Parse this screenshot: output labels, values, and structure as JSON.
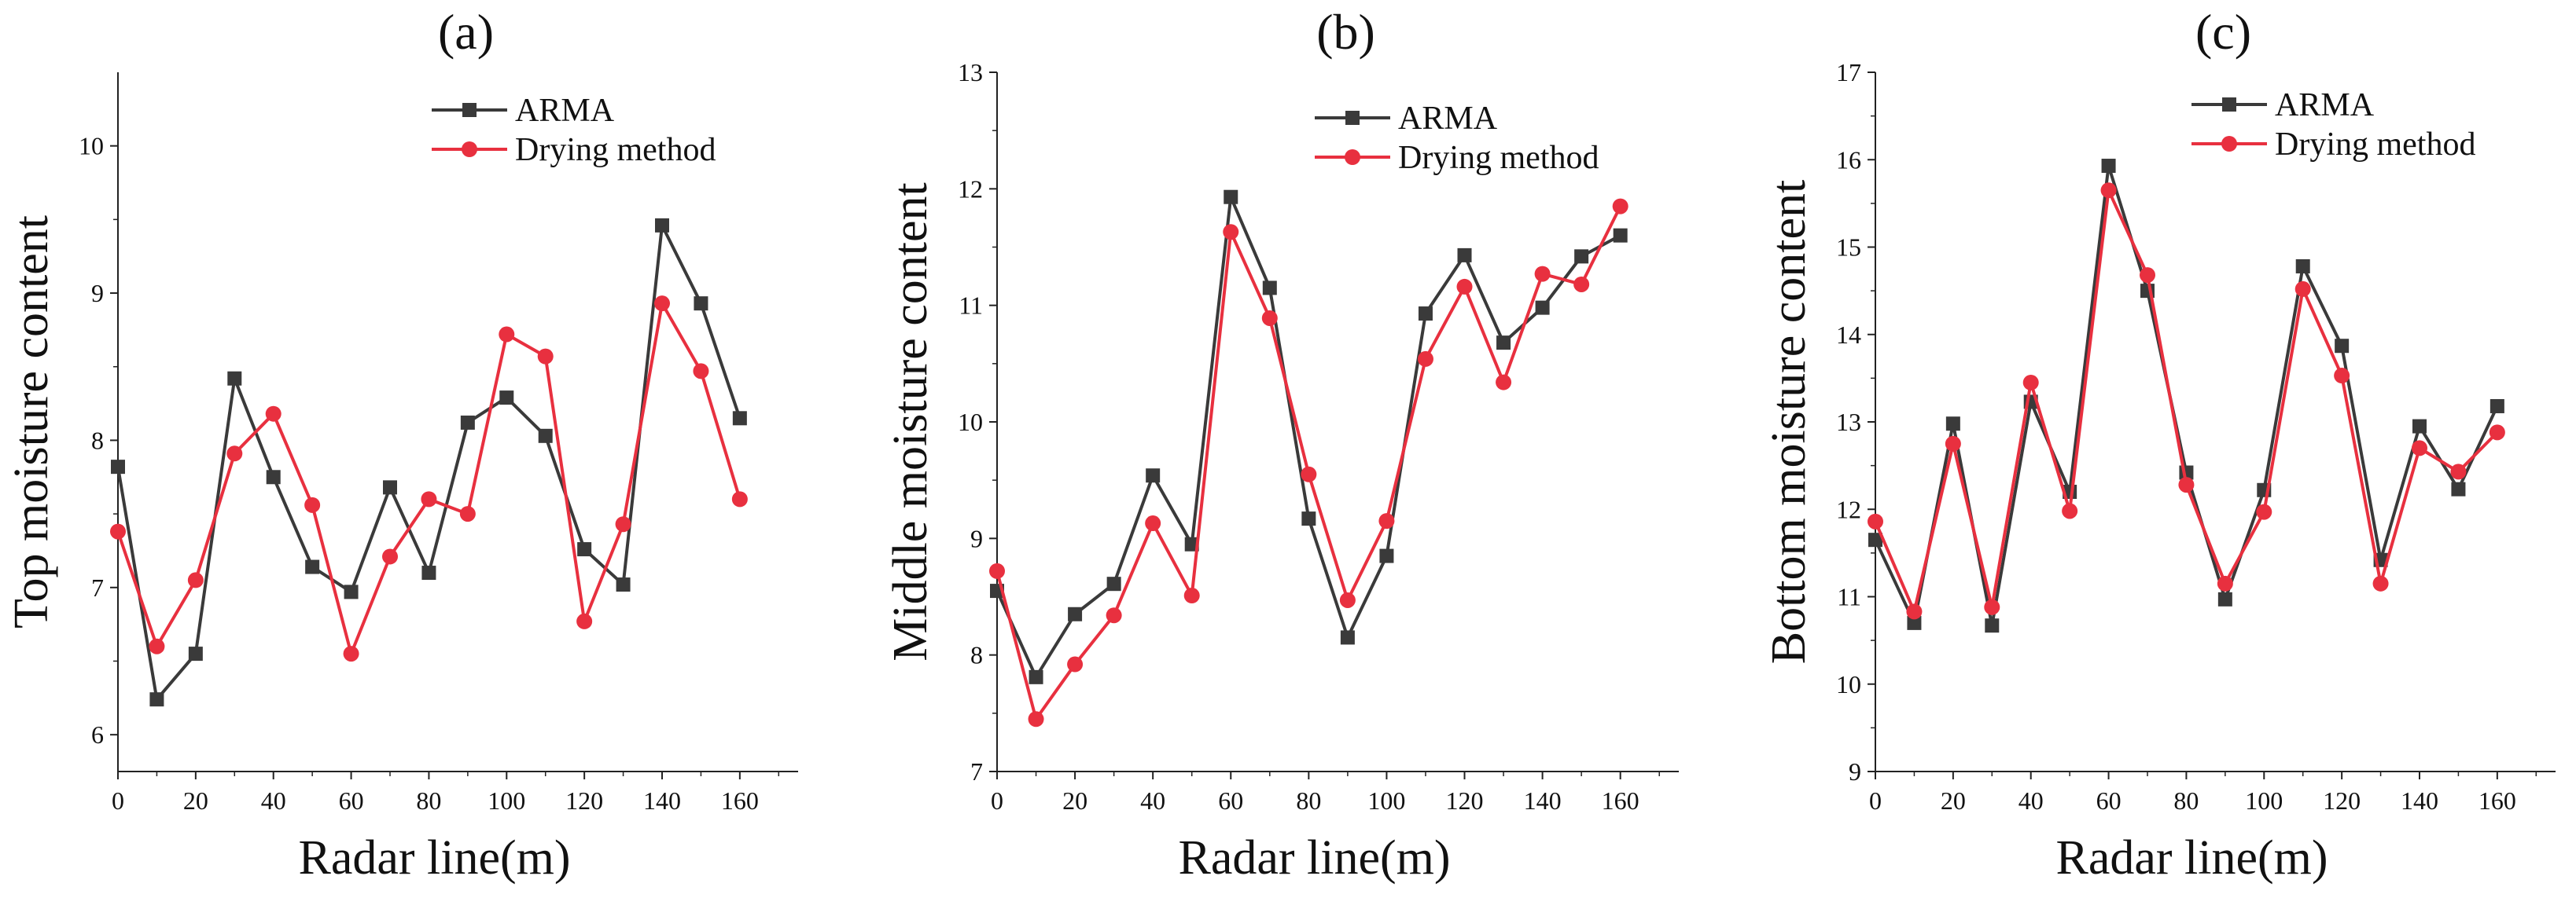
{
  "figure": {
    "colors": {
      "arma": "#3a3a3a",
      "drying": "#e8303f"
    },
    "legend": {
      "arma": "ARMA",
      "drying": "Drying method"
    }
  },
  "chart_data": [
    {
      "type": "line",
      "panel_label": "(a)",
      "title": "",
      "xlabel": "Radar line(m)",
      "ylabel": "Top moisture content",
      "xlim": [
        0,
        175
      ],
      "ylim": [
        5.75,
        10.5
      ],
      "x_ticks": [
        0,
        20,
        40,
        60,
        80,
        100,
        120,
        140,
        160
      ],
      "y_ticks": [
        6,
        7,
        8,
        9,
        10
      ],
      "x": [
        0,
        10,
        20,
        30,
        40,
        50,
        60,
        70,
        80,
        90,
        100,
        110,
        120,
        130,
        140,
        150,
        160
      ],
      "series": [
        {
          "name": "ARMA",
          "values": [
            7.82,
            6.24,
            6.55,
            8.42,
            7.75,
            7.14,
            6.97,
            7.68,
            7.1,
            8.12,
            8.29,
            8.03,
            7.26,
            7.02,
            9.46,
            8.93,
            8.15
          ]
        },
        {
          "name": "Drying method",
          "values": [
            7.38,
            6.6,
            7.05,
            7.91,
            8.18,
            7.56,
            6.55,
            7.21,
            7.6,
            7.5,
            8.72,
            8.57,
            6.77,
            7.43,
            8.93,
            8.47,
            7.6
          ]
        }
      ]
    },
    {
      "type": "line",
      "panel_label": "(b)",
      "title": "",
      "xlabel": "Radar line(m)",
      "ylabel": "Middle moisture content",
      "xlim": [
        0,
        175
      ],
      "ylim": [
        7,
        13
      ],
      "x_ticks": [
        0,
        20,
        40,
        60,
        80,
        100,
        120,
        140,
        160
      ],
      "y_ticks": [
        7,
        8,
        9,
        10,
        11,
        12,
        13
      ],
      "x": [
        0,
        10,
        20,
        30,
        40,
        50,
        60,
        70,
        80,
        90,
        100,
        110,
        120,
        130,
        140,
        150,
        160
      ],
      "series": [
        {
          "name": "ARMA",
          "values": [
            8.55,
            7.81,
            8.35,
            8.61,
            9.54,
            8.95,
            11.93,
            11.15,
            9.17,
            8.15,
            8.85,
            10.93,
            11.43,
            10.68,
            10.98,
            11.42,
            11.6
          ]
        },
        {
          "name": "Drying method",
          "values": [
            8.72,
            7.45,
            7.92,
            8.34,
            9.13,
            8.51,
            11.63,
            10.89,
            9.55,
            8.47,
            9.15,
            10.54,
            11.16,
            10.34,
            11.27,
            11.18,
            11.85
          ]
        }
      ]
    },
    {
      "type": "line",
      "panel_label": "(c)",
      "title": "",
      "xlabel": "Radar line(m)",
      "ylabel": "Bottom moisture content",
      "xlim": [
        0,
        175
      ],
      "ylim": [
        9,
        17
      ],
      "x_ticks": [
        0,
        20,
        40,
        60,
        80,
        100,
        120,
        140,
        160
      ],
      "y_ticks": [
        9,
        10,
        11,
        12,
        13,
        14,
        15,
        16,
        17
      ],
      "x": [
        0,
        10,
        20,
        30,
        40,
        50,
        60,
        70,
        80,
        90,
        100,
        110,
        120,
        130,
        140,
        150,
        160
      ],
      "series": [
        {
          "name": "ARMA",
          "values": [
            11.65,
            10.7,
            12.98,
            10.67,
            13.23,
            12.2,
            15.93,
            14.5,
            12.42,
            10.97,
            12.22,
            14.78,
            13.87,
            11.42,
            12.95,
            12.23,
            13.18
          ]
        },
        {
          "name": "Drying method",
          "values": [
            11.86,
            10.83,
            12.75,
            10.88,
            13.45,
            11.98,
            15.65,
            14.68,
            12.28,
            11.15,
            11.97,
            14.52,
            13.53,
            11.15,
            12.7,
            12.43,
            12.88
          ]
        }
      ]
    }
  ]
}
